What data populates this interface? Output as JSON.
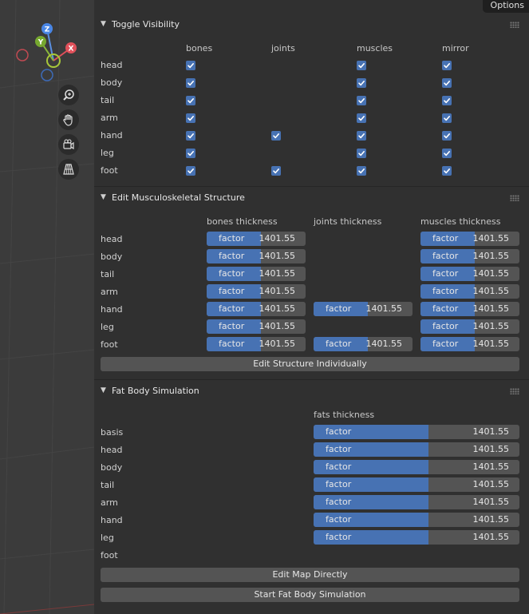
{
  "options_label": "Options",
  "gizmo": {
    "z": "Z",
    "y": "Y",
    "x": "X"
  },
  "toggle": {
    "title": "Toggle Visibility",
    "columns": [
      "bones",
      "joints",
      "muscles",
      "mirror"
    ],
    "rows": [
      {
        "label": "head",
        "bones": true,
        "joints": false,
        "muscles": true,
        "mirror": true
      },
      {
        "label": "body",
        "bones": true,
        "joints": false,
        "muscles": true,
        "mirror": true
      },
      {
        "label": "tail",
        "bones": true,
        "joints": false,
        "muscles": true,
        "mirror": true
      },
      {
        "label": "arm",
        "bones": true,
        "joints": false,
        "muscles": true,
        "mirror": true
      },
      {
        "label": "hand",
        "bones": true,
        "joints": true,
        "muscles": true,
        "mirror": true
      },
      {
        "label": "leg",
        "bones": true,
        "joints": false,
        "muscles": true,
        "mirror": true
      },
      {
        "label": "foot",
        "bones": true,
        "joints": true,
        "muscles": true,
        "mirror": true
      }
    ]
  },
  "structure": {
    "title": "Edit Musculoskeletal Structure",
    "columns": [
      "bones thickness",
      "joints thickness",
      "muscles thickness"
    ],
    "field_label": "factor",
    "rows": [
      {
        "label": "head",
        "bones": "1401.55",
        "joints": null,
        "muscles": "1401.55"
      },
      {
        "label": "body",
        "bones": "1401.55",
        "joints": null,
        "muscles": "1401.55"
      },
      {
        "label": "tail",
        "bones": "1401.55",
        "joints": null,
        "muscles": "1401.55"
      },
      {
        "label": "arm",
        "bones": "1401.55",
        "joints": null,
        "muscles": "1401.55"
      },
      {
        "label": "hand",
        "bones": "1401.55",
        "joints": "1401.55",
        "muscles": "1401.55"
      },
      {
        "label": "leg",
        "bones": "1401.55",
        "joints": null,
        "muscles": "1401.55"
      },
      {
        "label": "foot",
        "bones": "1401.55",
        "joints": "1401.55",
        "muscles": "1401.55"
      }
    ],
    "fill_fraction": 0.55,
    "button": "Edit Structure Individually"
  },
  "fat": {
    "title": "Fat Body Simulation",
    "column": "fats thickness",
    "field_label": "factor",
    "fill_fraction": 0.56,
    "rows": [
      {
        "label": "basis",
        "value": "1401.55"
      },
      {
        "label": "head",
        "value": "1401.55"
      },
      {
        "label": "body",
        "value": "1401.55"
      },
      {
        "label": "tail",
        "value": "1401.55"
      },
      {
        "label": "arm",
        "value": "1401.55"
      },
      {
        "label": "hand",
        "value": "1401.55"
      },
      {
        "label": "leg",
        "value": "1401.55"
      },
      {
        "label": "foot",
        "value": null
      }
    ],
    "button_map": "Edit Map Directly",
    "button_start": "Start Fat Body Simulation"
  },
  "colors": {
    "accent": "#4772b3",
    "panel": "#303030",
    "field": "#545454"
  }
}
